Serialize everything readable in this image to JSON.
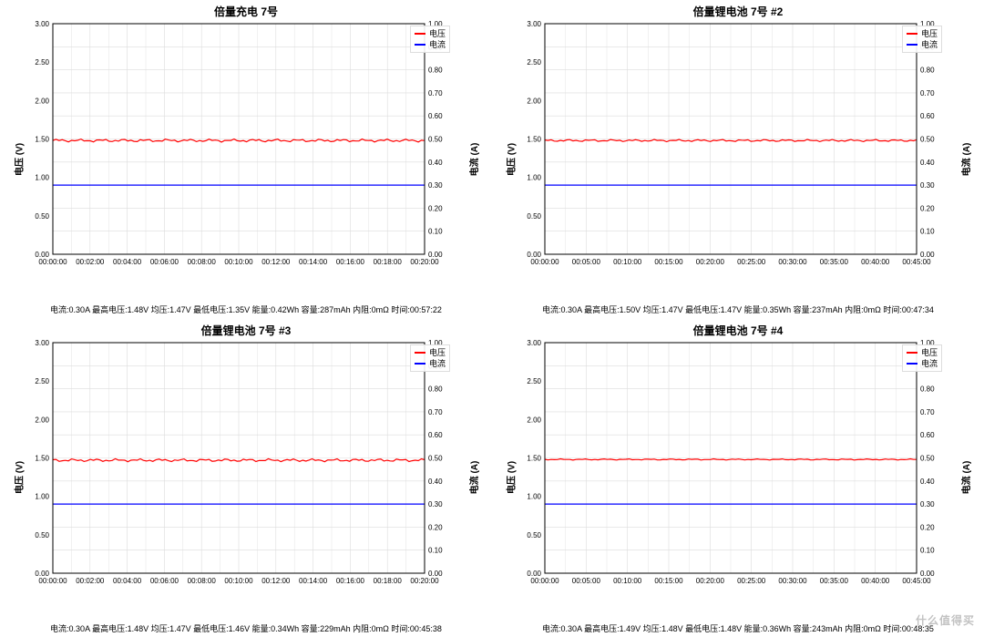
{
  "watermark": "什么值得买",
  "legend": {
    "voltage": "电压",
    "current": "电流"
  },
  "axis_labels": {
    "left": "电压 (V)",
    "right": "电流 (A)"
  },
  "style": {
    "voltage_color": "#ff0000",
    "current_color": "#0000ff",
    "grid_color": "#dcdcdc",
    "axis_color": "#000000",
    "background": "#ffffff",
    "line_width": 1.2,
    "title_fontsize": 12,
    "tick_fontsize": 8,
    "footer_fontsize": 9
  },
  "y_left": {
    "min": 0.0,
    "max": 3.0,
    "step": 0.5,
    "ticks": [
      "0.00",
      "0.50",
      "1.00",
      "1.50",
      "2.00",
      "2.50",
      "3.00"
    ]
  },
  "y_right": {
    "min": 0.0,
    "max": 1.0,
    "step": 0.1,
    "ticks": [
      "0.00",
      "0.10",
      "0.20",
      "0.30",
      "0.40",
      "0.50",
      "0.60",
      "0.70",
      "0.80",
      "0.90",
      "1.00"
    ]
  },
  "panels": [
    {
      "title": "倍量充电 7号",
      "x_ticks": [
        "00:00:00",
        "00:02:00",
        "00:04:00",
        "00:06:00",
        "00:08:00",
        "00:10:00",
        "00:12:00",
        "00:14:00",
        "00:16:00",
        "00:18:00",
        "00:20:00"
      ],
      "voltage_value": 1.48,
      "voltage_noise": 0.02,
      "current_value": 0.3,
      "footer": "电流:0.30A 最高电压:1.48V 均压:1.47V 最低电压:1.35V 能量:0.42Wh 容量:287mAh 内阻:0mΩ 时间:00:57:22"
    },
    {
      "title": "倍量锂电池 7号 #2",
      "x_ticks": [
        "00:00:00",
        "00:05:00",
        "00:10:00",
        "00:15:00",
        "00:20:00",
        "00:25:00",
        "00:30:00",
        "00:35:00",
        "00:40:00",
        "00:45:00"
      ],
      "voltage_value": 1.48,
      "voltage_noise": 0.015,
      "current_value": 0.3,
      "footer": "电流:0.30A 最高电压:1.50V 均压:1.47V 最低电压:1.47V 能量:0.35Wh 容量:237mAh 内阻:0mΩ 时间:00:47:34"
    },
    {
      "title": "倍量锂电池 7号 #3",
      "x_ticks": [
        "00:00:00",
        "00:02:00",
        "00:04:00",
        "00:06:00",
        "00:08:00",
        "00:10:00",
        "00:12:00",
        "00:14:00",
        "00:16:00",
        "00:18:00",
        "00:20:00"
      ],
      "voltage_value": 1.47,
      "voltage_noise": 0.02,
      "current_value": 0.3,
      "footer": "电流:0.30A 最高电压:1.48V 均压:1.47V 最低电压:1.46V 能量:0.34Wh 容量:229mAh 内阻:0mΩ 时间:00:45:38"
    },
    {
      "title": "倍量锂电池 7号 #4",
      "x_ticks": [
        "00:00:00",
        "00:05:00",
        "00:10:00",
        "00:15:00",
        "00:20:00",
        "00:25:00",
        "00:30:00",
        "00:35:00",
        "00:40:00",
        "00:45:00"
      ],
      "voltage_value": 1.48,
      "voltage_noise": 0.008,
      "current_value": 0.3,
      "footer": "电流:0.30A 最高电压:1.49V 均压:1.48V 最低电压:1.48V 能量:0.36Wh 容量:243mAh 内阻:0mΩ 时间:00:48:35"
    }
  ]
}
